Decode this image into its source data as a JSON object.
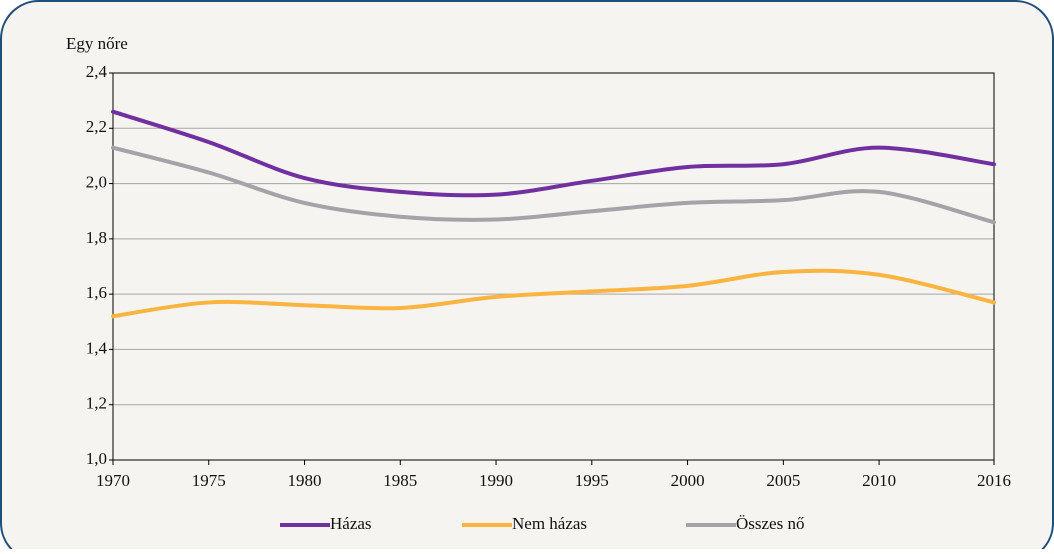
{
  "chart_data": {
    "type": "line",
    "y_label": "Egy nőre",
    "x": [
      1970,
      1975,
      1980,
      1985,
      1990,
      1995,
      2000,
      2005,
      2010,
      2016
    ],
    "series": [
      {
        "name": "Házas",
        "color": "#7030a0",
        "values": [
          2.26,
          2.15,
          2.02,
          1.97,
          1.96,
          2.01,
          2.06,
          2.07,
          2.13,
          2.07
        ]
      },
      {
        "name": "Nem házas",
        "color": "#fbb440",
        "values": [
          1.52,
          1.57,
          1.56,
          1.55,
          1.59,
          1.61,
          1.63,
          1.68,
          1.67,
          1.57
        ]
      },
      {
        "name": "Összes nő",
        "color": "#a3a3a8",
        "values": [
          2.13,
          2.04,
          1.93,
          1.88,
          1.87,
          1.9,
          1.93,
          1.94,
          1.97,
          1.86
        ]
      }
    ],
    "xlim": [
      1970,
      2016
    ],
    "xticks": [
      1970,
      1975,
      1980,
      1985,
      1990,
      1995,
      2000,
      2005,
      2010,
      2016
    ],
    "ylim": [
      1.0,
      2.4
    ],
    "yticks": [
      {
        "value": 1.0,
        "label": "1,0"
      },
      {
        "value": 1.2,
        "label": "1,2"
      },
      {
        "value": 1.4,
        "label": "1,4"
      },
      {
        "value": 1.6,
        "label": "1,6"
      },
      {
        "value": 1.8,
        "label": "1,8"
      },
      {
        "value": 2.0,
        "label": "2,0"
      },
      {
        "value": 2.2,
        "label": "2,2"
      },
      {
        "value": 2.4,
        "label": "2,4"
      }
    ],
    "grid": true,
    "legend": "bottom"
  }
}
